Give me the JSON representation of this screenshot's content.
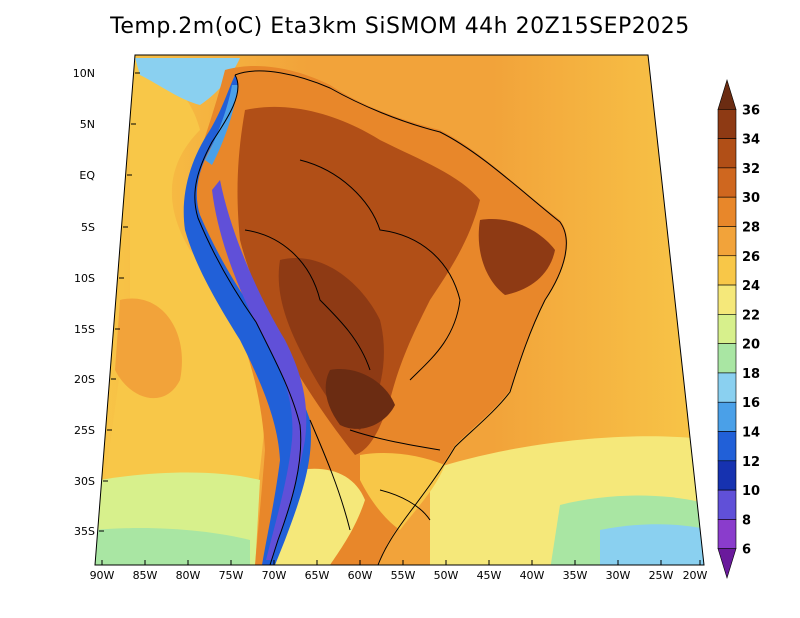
{
  "title": "Temp.2m(oC) Eta3km SiSMOM 44h 20Z15SEP2025",
  "lat_labels": [
    "10N",
    "5N",
    "EQ",
    "5S",
    "10S",
    "15S",
    "20S",
    "25S",
    "30S",
    "35S"
  ],
  "lon_labels": [
    "90W",
    "85W",
    "80W",
    "75W",
    "70W",
    "65W",
    "60W",
    "55W",
    "50W",
    "45W",
    "40W",
    "35W",
    "30W",
    "25W",
    "20W"
  ],
  "colorbar": {
    "labels": [
      "36",
      "34",
      "32",
      "30",
      "28",
      "26",
      "24",
      "22",
      "20",
      "18",
      "16",
      "14",
      "12",
      "10",
      "8",
      "6"
    ],
    "colors_top_to_bottom": [
      "#6b2c12",
      "#8e3a14",
      "#b14f17",
      "#cf671f",
      "#e8872a",
      "#f2a33a",
      "#f8c748",
      "#f5e87a",
      "#d7f08c",
      "#a9e6a3",
      "#8ad0f0",
      "#4aa0e8",
      "#2160d8",
      "#1632b0",
      "#6050d8",
      "#8a3ccc",
      "#6a1a9c"
    ],
    "unit": "oC"
  },
  "colors": {
    "ocean_warm": "#f2a33a",
    "ocean_mid": "#f8c748",
    "ocean_cool": "#f5e87a",
    "land_hot": "#b14f17",
    "land_hottest": "#8e3a14",
    "andes_cold": "#2160d8",
    "andes_coldest": "#6050d8"
  }
}
